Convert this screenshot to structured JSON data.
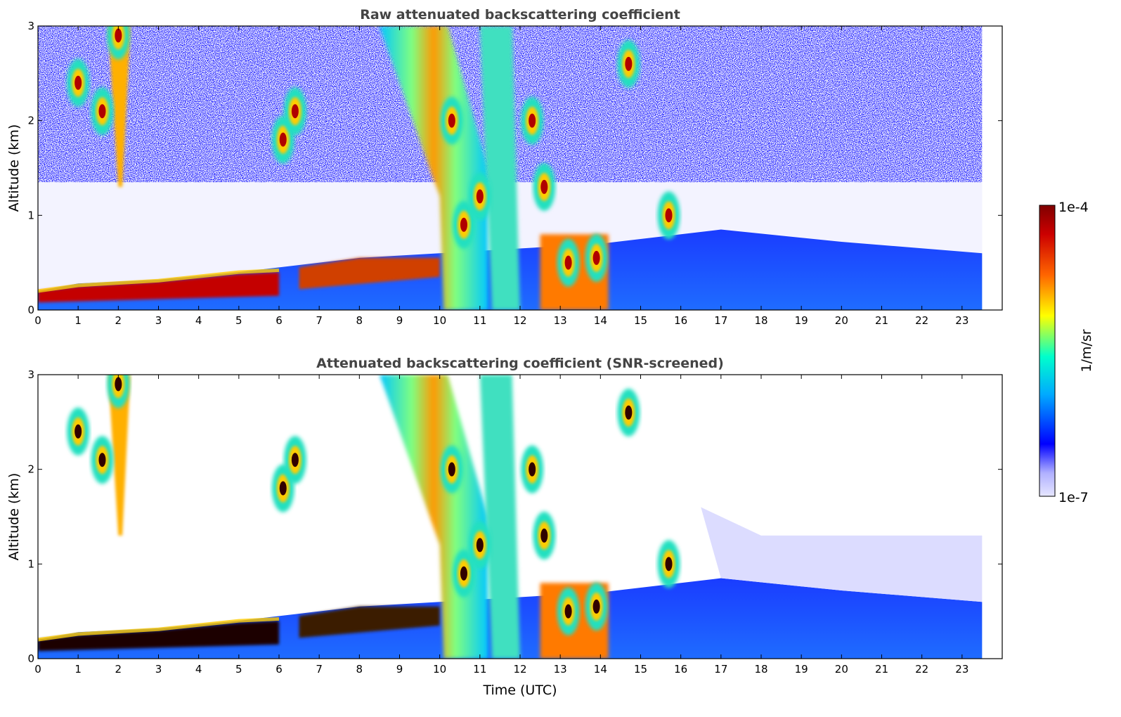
{
  "chart_data": [
    {
      "type": "heatmap",
      "title": "Raw attenuated backscattering coefficient",
      "xlabel": "",
      "ylabel": "Altitude (km)",
      "xlim": [
        0,
        24
      ],
      "ylim": [
        0,
        3
      ],
      "x_ticks": [
        "0",
        "1",
        "2",
        "3",
        "4",
        "5",
        "6",
        "7",
        "8",
        "9",
        "10",
        "11",
        "12",
        "13",
        "14",
        "15",
        "16",
        "17",
        "18",
        "19",
        "20",
        "21",
        "22",
        "23"
      ],
      "y_ticks": [
        "0",
        "1",
        "2",
        "3"
      ],
      "data_extent_hours": [
        0,
        23.5
      ],
      "features": {
        "boundary_layer_top_km": [
          {
            "t": 0,
            "z": 0.2
          },
          {
            "t": 1,
            "z": 0.28
          },
          {
            "t": 3,
            "z": 0.32
          },
          {
            "t": 5,
            "z": 0.4
          },
          {
            "t": 6,
            "z": 0.45
          },
          {
            "t": 8,
            "z": 0.55
          },
          {
            "t": 10,
            "z": 0.6
          },
          {
            "t": 14,
            "z": 0.7
          },
          {
            "t": 17,
            "z": 0.85
          },
          {
            "t": 20,
            "z": 0.72
          },
          {
            "t": 23.5,
            "z": 0.6
          }
        ],
        "cloud_cores": [
          {
            "t": 1.0,
            "z": 2.4
          },
          {
            "t": 1.6,
            "z": 2.1
          },
          {
            "t": 2.0,
            "z": 2.9
          },
          {
            "t": 6.1,
            "z": 1.8
          },
          {
            "t": 6.4,
            "z": 2.1
          },
          {
            "t": 10.3,
            "z": 2.0
          },
          {
            "t": 10.6,
            "z": 0.9
          },
          {
            "t": 11.0,
            "z": 1.2
          },
          {
            "t": 12.3,
            "z": 2.0
          },
          {
            "t": 12.6,
            "z": 1.3
          },
          {
            "t": 13.2,
            "z": 0.5
          },
          {
            "t": 13.9,
            "z": 0.55
          },
          {
            "t": 14.7,
            "z": 2.6
          },
          {
            "t": 15.7,
            "z": 1.0
          }
        ]
      }
    },
    {
      "type": "heatmap",
      "title": "Attenuated backscattering coefficient (SNR-screened)",
      "xlabel": "Time (UTC)",
      "ylabel": "Altitude (km)",
      "xlim": [
        0,
        24
      ],
      "ylim": [
        0,
        3
      ],
      "x_ticks": [
        "0",
        "1",
        "2",
        "3",
        "4",
        "5",
        "6",
        "7",
        "8",
        "9",
        "10",
        "11",
        "12",
        "13",
        "14",
        "15",
        "16",
        "17",
        "18",
        "19",
        "20",
        "21",
        "22",
        "23"
      ],
      "y_ticks": [
        "0",
        "1",
        "2",
        "3"
      ],
      "data_extent_hours": [
        0,
        23.5
      ]
    }
  ],
  "colorbar": {
    "label": "1/m/sr",
    "max_label": "1e-4",
    "min_label": "1e-7",
    "scale": "log",
    "colormap": [
      "#e6e6ff",
      "#0000ff",
      "#00aaff",
      "#00ffcc",
      "#ffff00",
      "#ff6600",
      "#cc0000",
      "#7f0000"
    ]
  }
}
